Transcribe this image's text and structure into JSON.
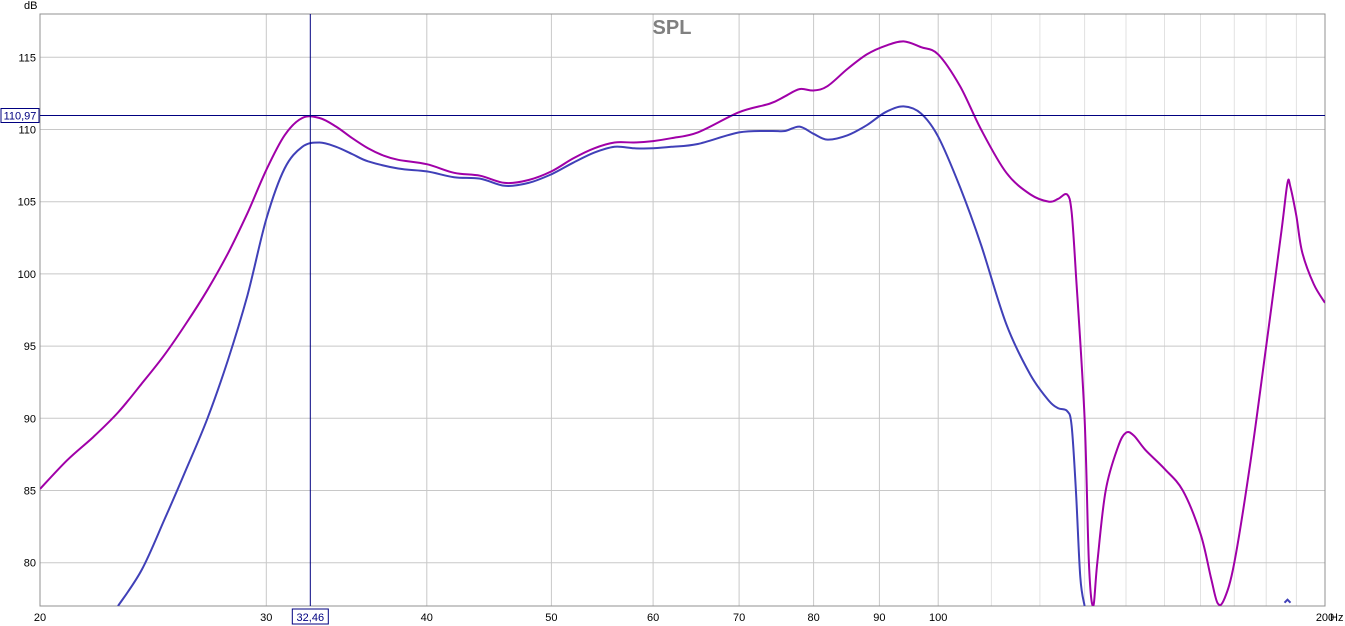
{
  "chart_data": {
    "type": "line",
    "title": "SPL",
    "ylabel": "dB",
    "xunit": "Hz",
    "xscale": "log",
    "xlim": [
      20,
      200
    ],
    "ylim": [
      77,
      118
    ],
    "grid": true,
    "x_ticks": [
      {
        "value": 20,
        "label": "20"
      },
      {
        "value": 30,
        "label": "30"
      },
      {
        "value": 40,
        "label": "40"
      },
      {
        "value": 50,
        "label": "50"
      },
      {
        "value": 60,
        "label": "60"
      },
      {
        "value": 70,
        "label": "70"
      },
      {
        "value": 80,
        "label": "80"
      },
      {
        "value": 90,
        "label": "90"
      },
      {
        "value": 100,
        "label": "100"
      },
      {
        "value": 200,
        "label": "200"
      }
    ],
    "x_minor": [
      110,
      120,
      130,
      140,
      150,
      160,
      170,
      180,
      190
    ],
    "y_ticks": [
      80,
      85,
      90,
      95,
      100,
      105,
      110,
      115
    ],
    "cursor": {
      "x": 32.46,
      "y": 110.97,
      "x_label": "32,46",
      "y_label": "110,97"
    },
    "series": [
      {
        "color": "#a000a8",
        "points": [
          [
            20,
            85.1
          ],
          [
            21,
            87.1
          ],
          [
            22,
            88.7
          ],
          [
            23,
            90.4
          ],
          [
            24,
            92.4
          ],
          [
            25,
            94.4
          ],
          [
            26,
            96.6
          ],
          [
            27,
            98.9
          ],
          [
            28,
            101.4
          ],
          [
            29,
            104.2
          ],
          [
            30,
            107.2
          ],
          [
            31,
            109.6
          ],
          [
            32,
            110.8
          ],
          [
            33,
            110.8
          ],
          [
            34,
            110.2
          ],
          [
            35,
            109.4
          ],
          [
            36,
            108.7
          ],
          [
            37,
            108.2
          ],
          [
            38,
            107.9
          ],
          [
            40,
            107.6
          ],
          [
            42,
            107.0
          ],
          [
            44,
            106.8
          ],
          [
            46,
            106.3
          ],
          [
            48,
            106.5
          ],
          [
            50,
            107.1
          ],
          [
            52,
            108.0
          ],
          [
            54,
            108.7
          ],
          [
            56,
            109.1
          ],
          [
            58,
            109.1
          ],
          [
            60,
            109.2
          ],
          [
            62,
            109.4
          ],
          [
            65,
            109.8
          ],
          [
            70,
            111.2
          ],
          [
            74,
            111.8
          ],
          [
            76,
            112.3
          ],
          [
            78,
            112.8
          ],
          [
            80,
            112.7
          ],
          [
            82,
            113.0
          ],
          [
            85,
            114.2
          ],
          [
            88,
            115.2
          ],
          [
            91,
            115.8
          ],
          [
            94,
            116.1
          ],
          [
            97,
            115.7
          ],
          [
            100,
            115.2
          ],
          [
            104,
            113.0
          ],
          [
            108,
            110.0
          ],
          [
            113,
            107.0
          ],
          [
            118,
            105.5
          ],
          [
            122,
            105.0
          ],
          [
            124,
            105.2
          ],
          [
            126,
            105.5
          ],
          [
            127,
            104.3
          ],
          [
            128,
            100.0
          ],
          [
            130,
            90.0
          ],
          [
            131,
            80.0
          ],
          [
            132,
            77.0
          ],
          [
            133,
            80.0
          ],
          [
            135,
            85.0
          ],
          [
            138,
            88.0
          ],
          [
            140,
            89.0
          ],
          [
            142,
            88.8
          ],
          [
            145,
            87.8
          ],
          [
            150,
            86.5
          ],
          [
            155,
            85.0
          ],
          [
            160,
            82.0
          ],
          [
            163,
            79.0
          ],
          [
            165,
            77.2
          ],
          [
            167,
            77.5
          ],
          [
            170,
            80.0
          ],
          [
            175,
            87.0
          ],
          [
            180,
            95.0
          ],
          [
            185,
            103.0
          ],
          [
            187,
            106.3
          ],
          [
            188,
            106.0
          ],
          [
            190,
            104.0
          ],
          [
            192,
            101.5
          ],
          [
            196,
            99.3
          ],
          [
            200,
            98.0
          ]
        ]
      },
      {
        "color": "#4040b8",
        "points": [
          [
            23,
            77.0
          ],
          [
            24,
            79.5
          ],
          [
            25,
            83.0
          ],
          [
            26,
            86.5
          ],
          [
            27,
            90.0
          ],
          [
            28,
            94.0
          ],
          [
            29,
            98.5
          ],
          [
            30,
            103.8
          ],
          [
            31,
            107.3
          ],
          [
            32,
            108.8
          ],
          [
            33,
            109.1
          ],
          [
            34,
            108.8
          ],
          [
            35,
            108.3
          ],
          [
            36,
            107.8
          ],
          [
            38,
            107.3
          ],
          [
            40,
            107.1
          ],
          [
            42,
            106.7
          ],
          [
            44,
            106.6
          ],
          [
            46,
            106.1
          ],
          [
            48,
            106.3
          ],
          [
            50,
            106.9
          ],
          [
            52,
            107.7
          ],
          [
            54,
            108.4
          ],
          [
            56,
            108.8
          ],
          [
            58,
            108.7
          ],
          [
            60,
            108.7
          ],
          [
            62,
            108.8
          ],
          [
            65,
            109.0
          ],
          [
            70,
            109.8
          ],
          [
            74,
            109.9
          ],
          [
            76,
            109.9
          ],
          [
            78,
            110.2
          ],
          [
            80,
            109.7
          ],
          [
            82,
            109.3
          ],
          [
            85,
            109.6
          ],
          [
            88,
            110.3
          ],
          [
            91,
            111.2
          ],
          [
            94,
            111.6
          ],
          [
            97,
            111.1
          ],
          [
            100,
            109.5
          ],
          [
            104,
            106.0
          ],
          [
            108,
            102.0
          ],
          [
            113,
            96.5
          ],
          [
            118,
            93.0
          ],
          [
            122,
            91.2
          ],
          [
            124,
            90.7
          ],
          [
            126,
            90.5
          ],
          [
            127,
            89.5
          ],
          [
            128,
            85.0
          ],
          [
            129,
            79.0
          ],
          [
            130,
            77.0
          ]
        ]
      }
    ],
    "stray_marker": {
      "x": 187,
      "y": 77.3
    }
  }
}
